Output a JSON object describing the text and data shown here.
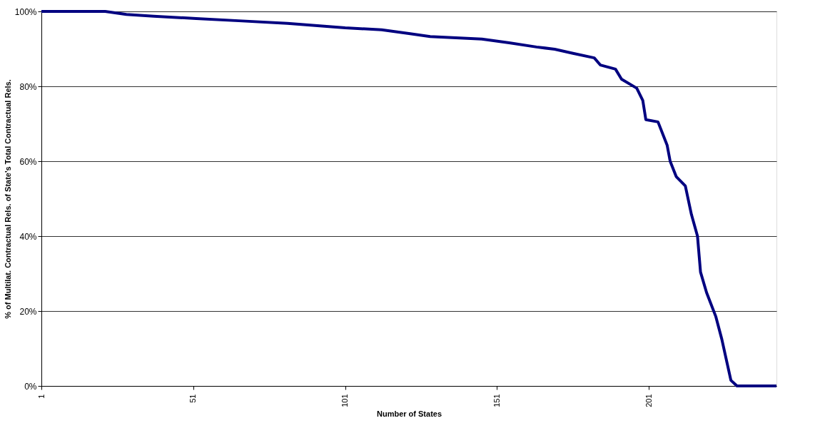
{
  "chart_data": {
    "type": "line",
    "xlabel": "Number of States",
    "ylabel": "% of Multilat. Contractual Rels. of State's Total Contractual Rels.",
    "x": [
      1,
      22,
      29,
      38,
      52,
      66,
      82,
      101,
      113,
      122,
      129,
      146,
      155,
      164,
      170,
      176,
      183,
      185,
      190,
      192,
      197,
      199,
      200,
      204,
      207,
      208,
      210,
      213,
      215,
      217,
      218,
      220,
      223,
      225,
      228,
      230,
      243
    ],
    "series": [
      {
        "color": "#000080",
        "values": [
          100,
          100,
          99.2,
          98.7,
          98.1,
          97.5,
          96.8,
          95.6,
          95.1,
          94.1,
          93.3,
          92.6,
          91.6,
          90.5,
          89.9,
          88.8,
          87.6,
          85.7,
          84.6,
          81.9,
          79.5,
          76.2,
          71.1,
          70.5,
          64.3,
          60,
          55.9,
          53.4,
          45.8,
          40,
          30.4,
          24.9,
          18.6,
          12.5,
          1.5,
          0,
          0
        ]
      }
    ],
    "xlim": [
      1,
      243
    ],
    "xticks": [
      1,
      51,
      101,
      151,
      201
    ],
    "ylim": [
      0,
      100
    ],
    "yticks": [
      {
        "value": 0,
        "label": "0%"
      },
      {
        "value": 20,
        "label": "20%"
      },
      {
        "value": 40,
        "label": "40%"
      },
      {
        "value": 60,
        "label": "60%"
      },
      {
        "value": 80,
        "label": "80%"
      },
      {
        "value": 100,
        "label": "100%"
      }
    ],
    "grid": "y",
    "legend": false,
    "marker": "none",
    "line_style": "solid"
  }
}
